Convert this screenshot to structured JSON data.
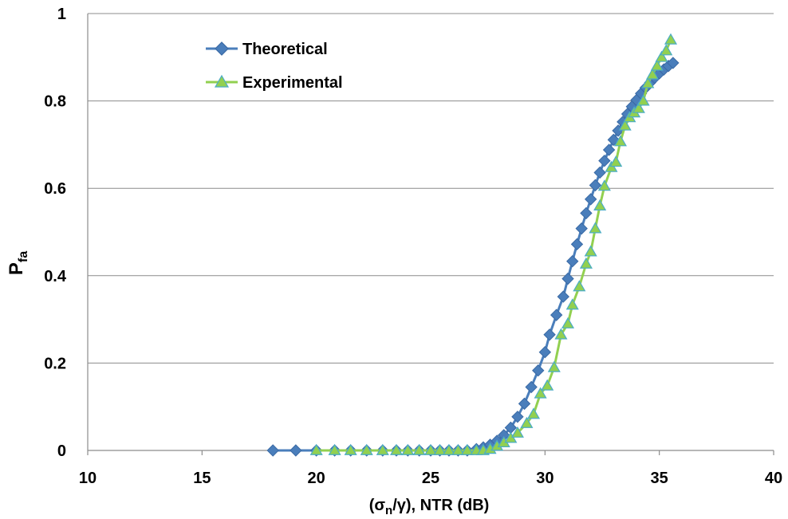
{
  "chart_data": {
    "type": "line",
    "xlabel": "(σn/γ),  NTR (dB)",
    "xlabel_main": "(σ",
    "xlabel_sub": "n",
    "xlabel_rest": "/γ),  NTR (dB)",
    "ylabel": "Pfa",
    "ylabel_main": "P",
    "ylabel_sub": "fa",
    "xlim": [
      10,
      40
    ],
    "ylim": [
      0,
      1
    ],
    "xticks": [
      "10",
      "15",
      "20",
      "25",
      "30",
      "35",
      "40"
    ],
    "yticks": [
      "0",
      "0.2",
      "0.4",
      "0.6",
      "0.8",
      "1"
    ],
    "grid": "horizontal",
    "legend_placement": "top-left",
    "series": [
      {
        "name": "Theoretical",
        "color": "#4a7ebb",
        "marker": "diamond",
        "x": [
          18.1,
          19.1,
          20.0,
          20.8,
          21.5,
          22.2,
          22.9,
          23.5,
          24.0,
          24.5,
          25.0,
          25.4,
          25.8,
          26.2,
          26.6,
          27.0,
          27.3,
          27.6,
          27.9,
          28.2,
          28.5,
          28.8,
          29.1,
          29.4,
          29.7,
          30.0,
          30.2,
          30.5,
          30.8,
          31.0,
          31.2,
          31.4,
          31.6,
          31.8,
          32.0,
          32.2,
          32.4,
          32.6,
          32.8,
          33.0,
          33.2,
          33.4,
          33.6,
          33.8,
          34.0,
          34.2,
          34.4,
          34.6,
          34.8,
          35.0,
          35.2,
          35.4,
          35.6
        ],
        "y": [
          0,
          0,
          0,
          0,
          0,
          0,
          0,
          0,
          0,
          0,
          0,
          0,
          0,
          0,
          0,
          0.003,
          0.007,
          0.013,
          0.022,
          0.035,
          0.052,
          0.077,
          0.107,
          0.145,
          0.183,
          0.225,
          0.265,
          0.31,
          0.352,
          0.393,
          0.433,
          0.472,
          0.508,
          0.543,
          0.575,
          0.607,
          0.636,
          0.663,
          0.688,
          0.711,
          0.732,
          0.752,
          0.77,
          0.787,
          0.802,
          0.817,
          0.83,
          0.842,
          0.853,
          0.863,
          0.872,
          0.88,
          0.887
        ]
      },
      {
        "name": "Experimental",
        "color": "#92d050",
        "marker": "triangle",
        "x": [
          20.0,
          20.8,
          21.5,
          22.2,
          22.9,
          23.5,
          24.0,
          24.5,
          25.0,
          25.4,
          25.8,
          26.2,
          26.6,
          27.0,
          27.3,
          27.6,
          27.9,
          28.2,
          28.5,
          28.8,
          29.2,
          29.5,
          29.8,
          30.1,
          30.4,
          30.7,
          31.0,
          31.2,
          31.5,
          31.8,
          32.0,
          32.2,
          32.4,
          32.6,
          32.9,
          33.1,
          33.3,
          33.5,
          33.7,
          33.9,
          34.1,
          34.3,
          34.5,
          34.7,
          34.9,
          35.1,
          35.3,
          35.5
        ],
        "y": [
          0,
          0,
          0,
          0,
          0,
          0,
          0,
          0,
          0,
          0,
          0,
          0,
          0,
          0,
          0,
          0.003,
          0.01,
          0.018,
          0.028,
          0.04,
          0.062,
          0.083,
          0.13,
          0.148,
          0.19,
          0.265,
          0.29,
          0.333,
          0.375,
          0.427,
          0.455,
          0.508,
          0.56,
          0.605,
          0.648,
          0.66,
          0.707,
          0.743,
          0.762,
          0.773,
          0.783,
          0.8,
          0.84,
          0.86,
          0.88,
          0.9,
          0.915,
          0.94
        ]
      }
    ]
  }
}
